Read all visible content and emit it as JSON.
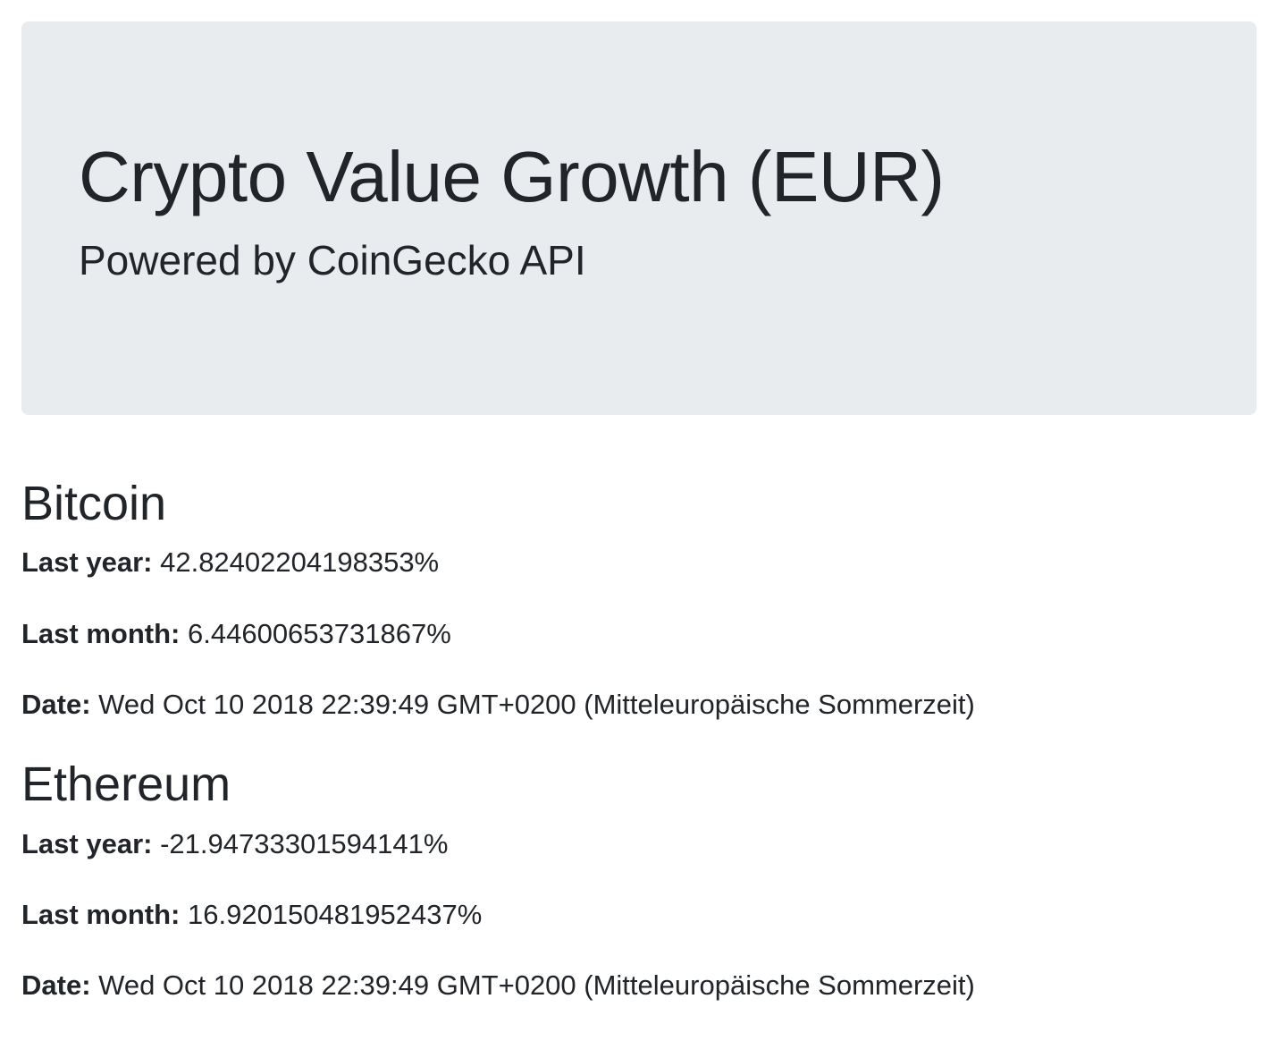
{
  "header": {
    "title": "Crypto Value Growth (EUR)",
    "subtitle": "Powered by CoinGecko API"
  },
  "labels": {
    "last_year": "Last year:",
    "last_month": "Last month:",
    "date": "Date:"
  },
  "coins": [
    {
      "name": "Bitcoin",
      "last_year": "42.82402204198353%",
      "last_month": "6.44600653731867%",
      "date": "Wed Oct 10 2018 22:39:49 GMT+0200 (Mitteleuropäische Sommerzeit)"
    },
    {
      "name": "Ethereum",
      "last_year": "-21.94733301594141%",
      "last_month": "16.920150481952437%",
      "date": "Wed Oct 10 2018 22:39:49 GMT+0200 (Mitteleuropäische Sommerzeit)"
    }
  ]
}
